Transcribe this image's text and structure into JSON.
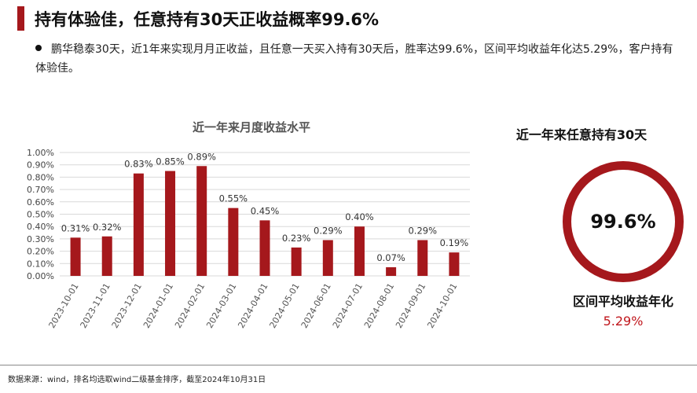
{
  "header": {
    "title": "持有体验佳，任意持有30天正收益概率99.6%"
  },
  "bullet": {
    "text": "鹏华稳泰30天，近1年来实现月月正收益，且任意一天买入持有30天后，胜率达99.6%，区间平均收益年化达5.29%，客户持有体验佳。"
  },
  "chart_data": {
    "type": "bar",
    "title": "近一年来月度收益水平",
    "categories": [
      "2023-10-01",
      "2023-11-01",
      "2023-12-01",
      "2024-01-01",
      "2024-02-01",
      "2024-03-01",
      "2024-04-01",
      "2024-05-01",
      "2024-06-01",
      "2024-07-01",
      "2024-08-01",
      "2024-09-01",
      "2024-10-01"
    ],
    "values": [
      0.31,
      0.32,
      0.83,
      0.85,
      0.89,
      0.55,
      0.45,
      0.23,
      0.29,
      0.4,
      0.07,
      0.29,
      0.19
    ],
    "data_labels": [
      "0.31%",
      "0.32%",
      "0.83%",
      "0.85%",
      "0.89%",
      "0.55%",
      "0.45%",
      "0.23%",
      "0.29%",
      "0.40%",
      "0.07%",
      "0.29%",
      "0.19%"
    ],
    "yticks": [
      "0.00%",
      "0.10%",
      "0.20%",
      "0.30%",
      "0.40%",
      "0.50%",
      "0.60%",
      "0.70%",
      "0.80%",
      "0.90%",
      "1.00%"
    ],
    "ylim": [
      0,
      1.0
    ],
    "grid": true,
    "bar_color": "#a5181c"
  },
  "side_panel": {
    "ring_title": "近一年来任意持有30天",
    "ring_value": "99.6%",
    "avg_label": "区间平均收益年化",
    "avg_value": "5.29%"
  },
  "footer": {
    "source": "数据来源：wind，排名均选取wind二级基金排序，截至2024年10月31日"
  }
}
